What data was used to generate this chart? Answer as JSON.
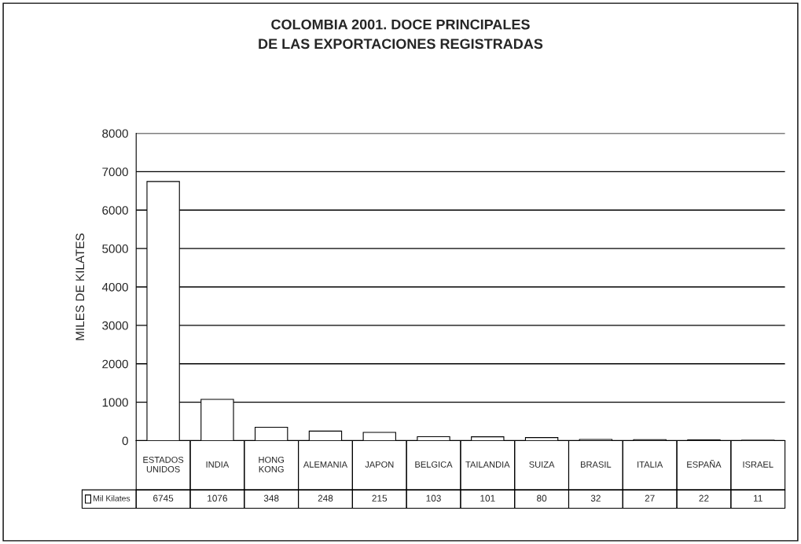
{
  "chart_data": {
    "type": "bar",
    "title": "COLOMBIA 2001. DOCE PRINCIPALES\nDE LAS EXPORTACIONES REGISTRADAS",
    "ylabel": "MILES DE KILATES",
    "categories": [
      "ESTADOS UNIDOS",
      "INDIA",
      "HONG KONG",
      "ALEMANIA",
      "JAPON",
      "BELGICA",
      "TAILANDIA",
      "SUIZA",
      "BRASIL",
      "ITALIA",
      "ESPAÑA",
      "ISRAEL"
    ],
    "series": [
      {
        "name": "Mil Kilates",
        "color": "#ffffff",
        "values": [
          6745,
          1076,
          348,
          248,
          215,
          103,
          101,
          80,
          32,
          27,
          22,
          11
        ]
      }
    ],
    "ylim": [
      0,
      8000
    ],
    "yticks": [
      0,
      1000,
      2000,
      3000,
      4000,
      5000,
      6000,
      7000,
      8000
    ],
    "grid": "y",
    "data_labels": true
  }
}
